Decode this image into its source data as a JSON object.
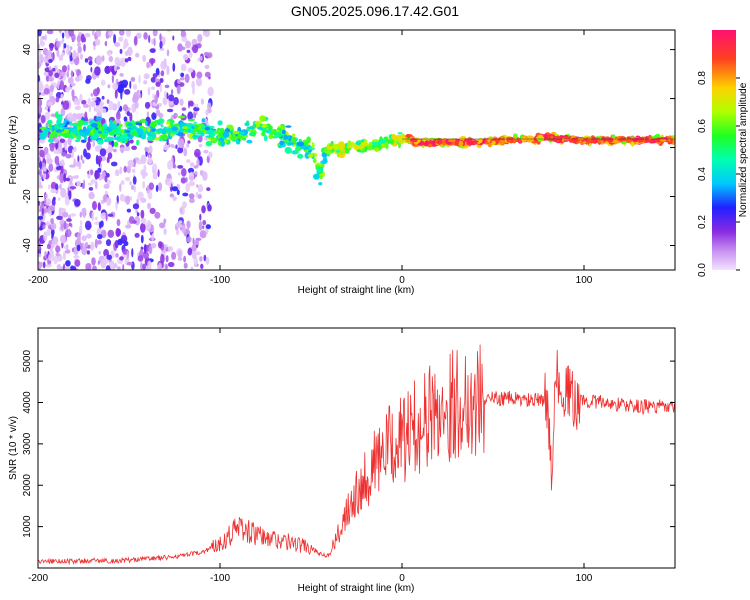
{
  "title": "GN05.2025.096.17.42.G01",
  "chart_data": [
    {
      "type": "heatmap",
      "xlabel": "Height of straight line (km)",
      "ylabel": "Frequency (Hz)",
      "xlim": [
        -200,
        150
      ],
      "ylim": [
        -50,
        48
      ],
      "xticks": [
        "-200",
        "-100",
        "0",
        "100"
      ],
      "xtick_values": [
        -200,
        -100,
        0,
        100
      ],
      "yticks": [
        "-40",
        "-20",
        "0",
        "20",
        "40"
      ],
      "ytick_values": [
        -40,
        -20,
        0,
        20,
        40
      ],
      "colorbar": {
        "label": "Normalized spectral amplitude",
        "range": [
          0,
          1
        ],
        "ticks": [
          "0.0",
          "0.2",
          "0.4",
          "0.6",
          "0.8"
        ],
        "tick_values": [
          0,
          0.2,
          0.4,
          0.6,
          0.8
        ]
      },
      "ridge": {
        "x": [
          -195,
          -190,
          -185,
          -160,
          -140,
          -130,
          -120,
          -110,
          -100,
          -90,
          -80,
          -70,
          -60,
          -50,
          -45,
          -40,
          -30,
          -20,
          -10,
          0,
          10,
          20,
          40,
          60,
          80,
          100,
          120,
          150
        ],
        "y": [
          7,
          8,
          7,
          6,
          7,
          7,
          8,
          7,
          6,
          5,
          8,
          6,
          3,
          -2,
          -10,
          -1,
          0,
          1,
          2,
          4,
          2,
          2,
          2,
          3,
          4,
          3,
          3,
          3
        ]
      }
    },
    {
      "type": "line",
      "xlabel": "Height of straight line (km)",
      "ylabel": "SNR (10 * v/v)",
      "xlim": [
        -200,
        150
      ],
      "ylim": [
        0,
        5800
      ],
      "xticks": [
        "-200",
        "-100",
        "0",
        "100"
      ],
      "xtick_values": [
        -200,
        -100,
        0,
        100
      ],
      "yticks": [
        "1000",
        "2000",
        "3000",
        "4000",
        "5000"
      ],
      "ytick_values": [
        1000,
        2000,
        3000,
        4000,
        5000
      ],
      "series": [
        {
          "color": "#ee3030",
          "x": [
            -200,
            -190,
            -180,
            -170,
            -160,
            -150,
            -140,
            -130,
            -120,
            -110,
            -100,
            -95,
            -90,
            -85,
            -80,
            -75,
            -70,
            -65,
            -60,
            -55,
            -50,
            -45,
            -40,
            -35,
            -30,
            -25,
            -20,
            -15,
            -10,
            -5,
            0,
            5,
            10,
            15,
            20,
            25,
            30,
            35,
            40,
            50,
            60,
            70,
            80,
            82,
            85,
            90,
            95,
            100,
            110,
            120,
            130,
            140,
            150
          ],
          "y": [
            150,
            170,
            160,
            180,
            170,
            190,
            230,
            250,
            300,
            380,
            600,
            800,
            1000,
            900,
            800,
            700,
            700,
            650,
            600,
            550,
            500,
            350,
            300,
            800,
            1500,
            1900,
            2200,
            2500,
            2800,
            3000,
            3100,
            3300,
            3500,
            3650,
            3800,
            3900,
            4000,
            4050,
            4050,
            4100,
            4100,
            4050,
            4050,
            2500,
            4600,
            4300,
            4000,
            4050,
            4000,
            3950,
            3900,
            3900,
            3850
          ]
        }
      ]
    }
  ]
}
